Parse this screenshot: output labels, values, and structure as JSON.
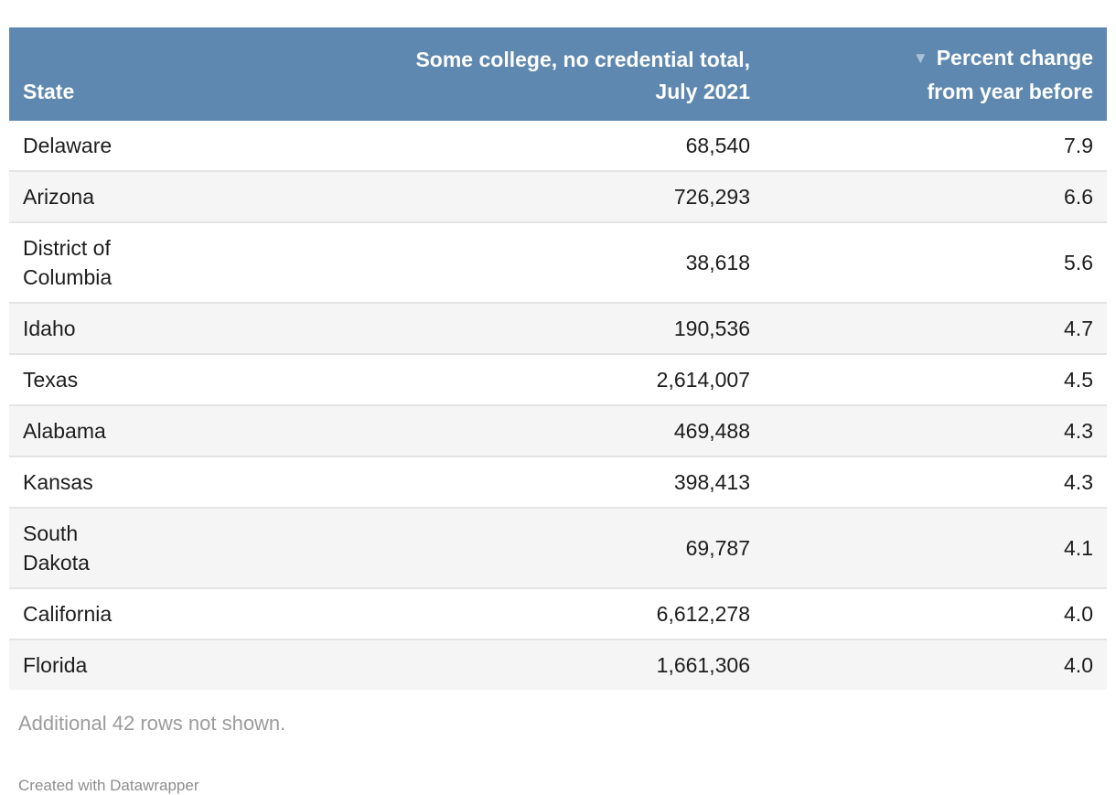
{
  "colors": {
    "header_bg": "#5e88b0",
    "header_text": "#ffffff",
    "sort_arrow": "#a7c3da",
    "row_stripe": "#f5f5f5",
    "row_border": "#e4e4e4",
    "cell_text": "#1d1d1d",
    "note_text": "#9b9b9b",
    "credit_text": "#8e8e8e"
  },
  "header": {
    "state_label": "State",
    "total_label": "Some college, no credential total,\nJuly 2021",
    "pct_label": "Percent change\nfrom year before",
    "sort_icon": "▼"
  },
  "rows": [
    {
      "state": "Delaware",
      "total": "68,540",
      "pct": "7.9"
    },
    {
      "state": "Arizona",
      "total": "726,293",
      "pct": "6.6"
    },
    {
      "state": "District of\nColumbia",
      "total": "38,618",
      "pct": "5.6"
    },
    {
      "state": "Idaho",
      "total": "190,536",
      "pct": "4.7"
    },
    {
      "state": "Texas",
      "total": "2,614,007",
      "pct": "4.5"
    },
    {
      "state": "Alabama",
      "total": "469,488",
      "pct": "4.3"
    },
    {
      "state": "Kansas",
      "total": "398,413",
      "pct": "4.3"
    },
    {
      "state": "South\nDakota",
      "total": "69,787",
      "pct": "4.1"
    },
    {
      "state": "California",
      "total": "6,612,278",
      "pct": "4.0"
    },
    {
      "state": "Florida",
      "total": "1,661,306",
      "pct": "4.0"
    }
  ],
  "footer": {
    "note": "Additional 42 rows not shown.",
    "credit": "Created with Datawrapper"
  },
  "chart_data": {
    "type": "table",
    "title": "",
    "columns": [
      "State",
      "Some college, no credential total, July 2021",
      "Percent change from year before"
    ],
    "rows": [
      [
        "Delaware",
        68540,
        7.9
      ],
      [
        "Arizona",
        726293,
        6.6
      ],
      [
        "District of Columbia",
        38618,
        5.6
      ],
      [
        "Idaho",
        190536,
        4.7
      ],
      [
        "Texas",
        2614007,
        4.5
      ],
      [
        "Alabama",
        469488,
        4.3
      ],
      [
        "Kansas",
        398413,
        4.3
      ],
      [
        "South Dakota",
        69787,
        4.1
      ],
      [
        "California",
        6612278,
        4.0
      ],
      [
        "Florida",
        1661306,
        4.0
      ]
    ],
    "sort": {
      "column": "Percent change from year before",
      "direction": "desc"
    },
    "note": "Additional 42 rows not shown.",
    "credit": "Created with Datawrapper"
  }
}
